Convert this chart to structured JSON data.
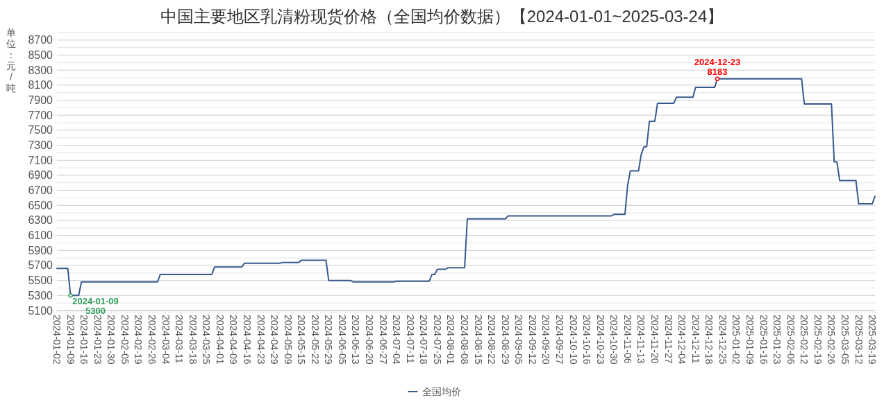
{
  "chart_data": {
    "type": "line",
    "title": "中国主要地区乳清粉现货价格（全国均价数据）【2024-01-01~2025-03-24】",
    "ylabel": "单位：元/吨",
    "categories": [
      "2024-01-02",
      null,
      null,
      null,
      null,
      "2024-01-09",
      null,
      null,
      null,
      null,
      "2024-01-16",
      null,
      null,
      null,
      null,
      "2024-01-23",
      null,
      null,
      null,
      null,
      "2024-01-30",
      null,
      null,
      null,
      null,
      "2024-02-05",
      null,
      null,
      null,
      null,
      "2024-02-19",
      null,
      null,
      null,
      null,
      "2024-02-26",
      null,
      null,
      null,
      null,
      "2024-03-04",
      null,
      null,
      null,
      null,
      "2024-03-11",
      null,
      null,
      null,
      null,
      "2024-03-18",
      null,
      null,
      null,
      null,
      "2024-03-25",
      null,
      null,
      null,
      null,
      "2024-04-01",
      null,
      null,
      null,
      null,
      "2024-04-09",
      null,
      null,
      null,
      null,
      "2024-04-16",
      null,
      null,
      null,
      null,
      "2024-04-23",
      null,
      null,
      null,
      null,
      "2024-04-29",
      null,
      null,
      null,
      null,
      "2024-05-09",
      null,
      null,
      null,
      null,
      "2024-05-15",
      null,
      null,
      null,
      null,
      "2024-05-22",
      null,
      null,
      null,
      null,
      "2024-05-29",
      null,
      null,
      null,
      null,
      "2024-06-05",
      null,
      null,
      null,
      null,
      "2024-06-13",
      null,
      null,
      null,
      null,
      "2024-06-20",
      null,
      null,
      null,
      null,
      "2024-06-27",
      null,
      null,
      null,
      null,
      "2024-07-04",
      null,
      null,
      null,
      null,
      "2024-07-11",
      null,
      null,
      null,
      null,
      "2024-07-18",
      null,
      null,
      null,
      null,
      "2024-07-25",
      null,
      null,
      null,
      null,
      "2024-08-01",
      null,
      null,
      null,
      null,
      "2024-08-08",
      null,
      null,
      null,
      null,
      "2024-08-15",
      null,
      null,
      null,
      null,
      "2024-08-22",
      null,
      null,
      null,
      null,
      "2024-08-29",
      null,
      null,
      null,
      null,
      "2024-09-05",
      null,
      null,
      null,
      null,
      "2024-09-12",
      null,
      null,
      null,
      null,
      "2024-09-20",
      null,
      null,
      null,
      null,
      "2024-09-27",
      null,
      null,
      null,
      null,
      "2024-10-10",
      null,
      null,
      null,
      null,
      "2024-10-16",
      null,
      null,
      null,
      null,
      "2024-10-23",
      null,
      null,
      null,
      null,
      "2024-10-30",
      null,
      null,
      null,
      null,
      "2024-11-06",
      null,
      null,
      null,
      null,
      "2024-11-13",
      null,
      null,
      null,
      null,
      "2024-11-20",
      null,
      null,
      null,
      null,
      "2024-11-27",
      null,
      null,
      null,
      null,
      "2024-12-04",
      null,
      null,
      null,
      null,
      "2024-12-11",
      null,
      null,
      null,
      null,
      "2024-12-18",
      null,
      null,
      null,
      null,
      "2024-12-25",
      null,
      null,
      null,
      null,
      "2025-01-02",
      null,
      null,
      null,
      null,
      "2025-01-09",
      null,
      null,
      null,
      null,
      "2025-01-16",
      null,
      null,
      null,
      null,
      "2025-01-23",
      null,
      null,
      null,
      null,
      "2025-02-06",
      null,
      null,
      null,
      null,
      "2025-02-12",
      null,
      null,
      null,
      null,
      "2025-02-19",
      null,
      null,
      null,
      null,
      "2025-02-26",
      null,
      null,
      null,
      null,
      "2025-03-05",
      null,
      null,
      null,
      null,
      "2025-03-12",
      null,
      null,
      null,
      null,
      "2025-03-19",
      null
    ],
    "series": [
      {
        "name": "全国均价",
        "color": "#36598c",
        "values": [
          5660,
          5660,
          5660,
          5660,
          5660,
          5300,
          5300,
          5300,
          5300,
          5480,
          5480,
          5480,
          5480,
          5480,
          5480,
          5480,
          5480,
          5480,
          5480,
          5480,
          5480,
          5480,
          5480,
          5480,
          5480,
          5480,
          5480,
          5480,
          5480,
          5480,
          5480,
          5480,
          5480,
          5480,
          5480,
          5480,
          5480,
          5480,
          5580,
          5580,
          5580,
          5580,
          5580,
          5580,
          5580,
          5580,
          5580,
          5580,
          5580,
          5580,
          5580,
          5580,
          5580,
          5580,
          5580,
          5580,
          5580,
          5580,
          5680,
          5680,
          5680,
          5680,
          5680,
          5680,
          5680,
          5680,
          5680,
          5680,
          5680,
          5730,
          5730,
          5730,
          5730,
          5730,
          5730,
          5730,
          5730,
          5730,
          5730,
          5730,
          5730,
          5730,
          5730,
          5740,
          5740,
          5740,
          5740,
          5740,
          5740,
          5740,
          5770,
          5770,
          5770,
          5770,
          5770,
          5770,
          5770,
          5770,
          5770,
          5770,
          5500,
          5500,
          5500,
          5500,
          5500,
          5500,
          5500,
          5500,
          5500,
          5480,
          5480,
          5480,
          5480,
          5480,
          5480,
          5480,
          5480,
          5480,
          5480,
          5480,
          5480,
          5480,
          5480,
          5480,
          5480,
          5490,
          5490,
          5490,
          5490,
          5490,
          5490,
          5490,
          5490,
          5490,
          5490,
          5490,
          5490,
          5490,
          5580,
          5580,
          5650,
          5650,
          5650,
          5650,
          5670,
          5670,
          5670,
          5670,
          5670,
          5670,
          5670,
          6320,
          6320,
          6320,
          6320,
          6320,
          6320,
          6320,
          6320,
          6320,
          6320,
          6320,
          6320,
          6320,
          6320,
          6320,
          6360,
          6360,
          6360,
          6360,
          6360,
          6360,
          6360,
          6360,
          6360,
          6360,
          6360,
          6360,
          6360,
          6360,
          6360,
          6360,
          6360,
          6360,
          6360,
          6360,
          6360,
          6360,
          6360,
          6360,
          6360,
          6360,
          6360,
          6360,
          6360,
          6360,
          6360,
          6360,
          6360,
          6360,
          6360,
          6360,
          6360,
          6360,
          6360,
          6380,
          6380,
          6380,
          6380,
          6380,
          6770,
          6960,
          6960,
          6960,
          6960,
          7180,
          7280,
          7280,
          7620,
          7620,
          7620,
          7860,
          7860,
          7860,
          7860,
          7860,
          7860,
          7860,
          7940,
          7940,
          7940,
          7940,
          7940,
          7940,
          7940,
          8070,
          8070,
          8070,
          8070,
          8070,
          8070,
          8070,
          8070,
          8183,
          8183,
          8183,
          8183,
          8183,
          8183,
          8183,
          8183,
          8183,
          8183,
          8183,
          8183,
          8183,
          8183,
          8183,
          8183,
          8183,
          8183,
          8183,
          8183,
          8183,
          8183,
          8183,
          8183,
          8183,
          8183,
          8183,
          8183,
          8183,
          8183,
          8183,
          8183,
          7850,
          7850,
          7850,
          7850,
          7850,
          7850,
          7850,
          7850,
          7850,
          7850,
          7850,
          7080,
          7080,
          6830,
          6830,
          6830,
          6830,
          6830,
          6830,
          6830,
          6520,
          6520,
          6520,
          6520,
          6520,
          6520,
          6620
        ]
      }
    ],
    "ylim": [
      5100,
      8800
    ],
    "yticks": [
      5100,
      {
        "value": 5200,
        "label": null
      },
      5300,
      {
        "value": 5400,
        "label": null
      },
      5500,
      {
        "value": 5600,
        "label": null
      },
      5700,
      {
        "value": 5800,
        "label": null
      },
      5900,
      {
        "value": 6000,
        "label": null
      },
      6100,
      {
        "value": 6200,
        "label": null
      },
      6300,
      {
        "value": 6400,
        "label": null
      },
      6500,
      {
        "value": 6600,
        "label": null
      },
      6700,
      {
        "value": 6800,
        "label": null
      },
      6900,
      {
        "value": 7000,
        "label": null
      },
      7100,
      {
        "value": 7200,
        "label": null
      },
      7300,
      {
        "value": 7400,
        "label": null
      },
      7500,
      {
        "value": 7600,
        "label": null
      },
      7700,
      {
        "value": 7800,
        "label": null
      },
      7900,
      {
        "value": 8000,
        "label": null
      },
      8100,
      {
        "value": 8200,
        "label": null
      },
      8300,
      {
        "value": 8400,
        "label": null
      },
      8500,
      {
        "value": 8600,
        "label": null
      },
      8700,
      {
        "value": 8800,
        "label": null
      }
    ],
    "grid": true,
    "legend": "bottom",
    "annotations": [
      {
        "text": "2024-01-09",
        "x": "2024-01-09",
        "y": 5300
      },
      {
        "text": "5300",
        "x": "2024-01-09",
        "y": 5300
      },
      {
        "text": "2024-12-23",
        "y": 8183
      },
      {
        "text": "8183",
        "y": 8183
      }
    ]
  }
}
